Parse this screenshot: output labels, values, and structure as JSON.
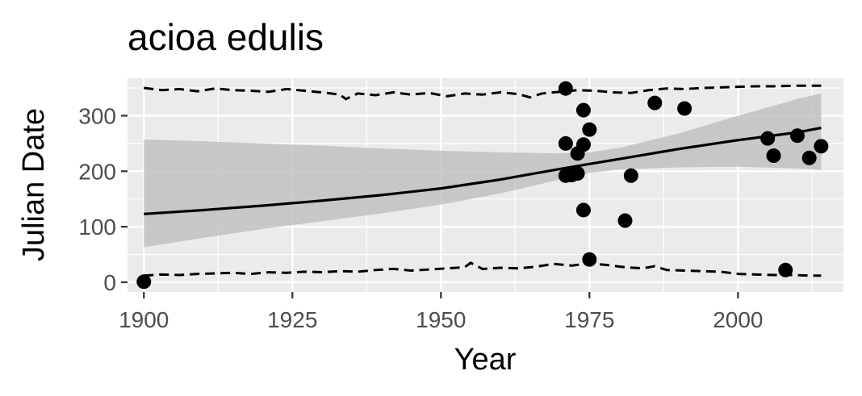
{
  "chart_data": {
    "type": "scatter",
    "title": "acioa edulis",
    "xlabel": "Year",
    "ylabel": "Julian Date",
    "xlim": [
      1897.25,
      2017.75
    ],
    "ylim": [
      -17.5,
      367.5
    ],
    "x_ticks": [
      1900,
      1925,
      1950,
      1975,
      2000
    ],
    "x_tick_labels": [
      "1900",
      "1925",
      "1950",
      "1975",
      "2000"
    ],
    "y_ticks": [
      0,
      100,
      200,
      300
    ],
    "y_tick_labels": [
      "0",
      "100",
      "200",
      "300"
    ],
    "grid": true,
    "legend": "none",
    "colors": {
      "panel_background": "#ebebeb",
      "grid": "#ffffff",
      "ribbon": "#bebebe",
      "line": "#000000",
      "points": "#000000"
    },
    "points": [
      {
        "x": 1900,
        "y": 1
      },
      {
        "x": 1971,
        "y": 349
      },
      {
        "x": 1971,
        "y": 250
      },
      {
        "x": 1971,
        "y": 192
      },
      {
        "x": 1972,
        "y": 193
      },
      {
        "x": 1973,
        "y": 232
      },
      {
        "x": 1973,
        "y": 196
      },
      {
        "x": 1974,
        "y": 310
      },
      {
        "x": 1974,
        "y": 248
      },
      {
        "x": 1974,
        "y": 130
      },
      {
        "x": 1975,
        "y": 275
      },
      {
        "x": 1975,
        "y": 41
      },
      {
        "x": 1981,
        "y": 111
      },
      {
        "x": 1982,
        "y": 192
      },
      {
        "x": 1986,
        "y": 323
      },
      {
        "x": 1991,
        "y": 313
      },
      {
        "x": 2005,
        "y": 259
      },
      {
        "x": 2006,
        "y": 228
      },
      {
        "x": 2008,
        "y": 22
      },
      {
        "x": 2010,
        "y": 264
      },
      {
        "x": 2012,
        "y": 224
      },
      {
        "x": 2014,
        "y": 245
      }
    ],
    "trend_line": {
      "x": [
        1900,
        1910,
        1920,
        1930,
        1940,
        1950,
        1960,
        1970,
        1975,
        1980,
        1990,
        2000,
        2010,
        2014
      ],
      "y": [
        123,
        130,
        138,
        147,
        157,
        169,
        185,
        204,
        213,
        222,
        240,
        256,
        270,
        278
      ]
    },
    "confidence_band": {
      "x": [
        1900,
        1910,
        1920,
        1930,
        1940,
        1950,
        1960,
        1970,
        1975,
        1980,
        1990,
        2000,
        2010,
        2014
      ],
      "lower": [
        63,
        80,
        96,
        110,
        124,
        140,
        160,
        185,
        197,
        203,
        207,
        208,
        205,
        202
      ],
      "upper": [
        257,
        254,
        250,
        246,
        241,
        237,
        234,
        232,
        234,
        242,
        268,
        300,
        330,
        340
      ]
    },
    "upper_dashed": {
      "x": [
        1900,
        1903,
        1906,
        1909,
        1912,
        1915,
        1918,
        1921,
        1924,
        1927,
        1930,
        1933,
        1934,
        1936,
        1939,
        1942,
        1945,
        1948,
        1951,
        1954,
        1957,
        1960,
        1963,
        1965,
        1967,
        1970,
        1973,
        1976,
        1979,
        1982,
        1985,
        1988,
        1991,
        1994,
        1997,
        2000,
        2003,
        2006,
        2009,
        2012,
        2014
      ],
      "y": [
        350,
        346,
        348,
        344,
        349,
        346,
        345,
        343,
        348,
        345,
        342,
        338,
        330,
        340,
        337,
        342,
        338,
        341,
        335,
        340,
        338,
        342,
        339,
        333,
        340,
        343,
        346,
        345,
        342,
        341,
        346,
        349,
        348,
        350,
        351,
        352,
        353,
        353,
        354,
        354,
        354
      ]
    },
    "lower_dashed": {
      "x": [
        1900,
        1903,
        1906,
        1909,
        1912,
        1915,
        1918,
        1921,
        1924,
        1927,
        1930,
        1933,
        1936,
        1939,
        1942,
        1945,
        1948,
        1951,
        1954,
        1955,
        1957,
        1960,
        1963,
        1966,
        1969,
        1972,
        1975,
        1978,
        1981,
        1984,
        1986,
        1988,
        1991,
        1994,
        1997,
        2000,
        2003,
        2006,
        2009,
        2012,
        2014
      ],
      "y": [
        12,
        14,
        13,
        15,
        16,
        17,
        15,
        18,
        17,
        19,
        18,
        20,
        19,
        22,
        24,
        21,
        23,
        25,
        27,
        35,
        24,
        26,
        25,
        28,
        33,
        30,
        34,
        31,
        27,
        25,
        29,
        22,
        21,
        20,
        19,
        15,
        14,
        13,
        13,
        12,
        12
      ]
    }
  }
}
